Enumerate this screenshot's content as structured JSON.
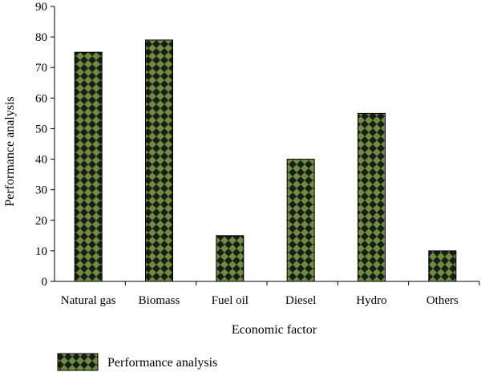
{
  "chart_data": {
    "type": "bar",
    "title": "",
    "xlabel": "Economic factor",
    "ylabel": "Performance analysis",
    "categories": [
      "Natural gas",
      "Biomass",
      "Fuel oil",
      "Diesel",
      "Hydro",
      "Others"
    ],
    "series": [
      {
        "name": "Performance analysis",
        "values": [
          75,
          79,
          15,
          40,
          55,
          10
        ]
      }
    ],
    "ylim": [
      0,
      90
    ],
    "yticks": [
      0,
      10,
      20,
      30,
      40,
      50,
      60,
      70,
      80,
      90
    ],
    "grid": false,
    "legend": "bottom",
    "bar_fill": "#6b8e3a",
    "bar_pattern_color": "#1a1a1a"
  }
}
